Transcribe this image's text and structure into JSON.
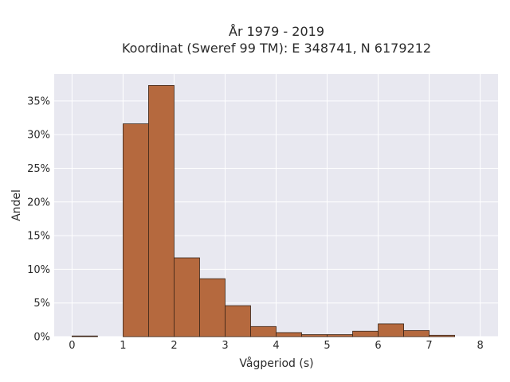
{
  "chart_data": {
    "type": "bar",
    "title_line1": "År 1979 - 2019",
    "title_line2": "Koordinat (Sweref 99 TM): E 348741, N 6179212",
    "xlabel": "Vågperiod (s)",
    "ylabel": "Andel",
    "x_ticks": [
      "0",
      "1",
      "2",
      "3",
      "4",
      "5",
      "6",
      "7",
      "8"
    ],
    "y_ticks": [
      "0%",
      "5%",
      "10%",
      "15%",
      "20%",
      "25%",
      "30%",
      "35%"
    ],
    "xlim": [
      -0.35,
      8.35
    ],
    "ylim": [
      0,
      0.39
    ],
    "bin_width": 0.5,
    "bins": [
      {
        "x0": 0.0,
        "value": 0.001
      },
      {
        "x0": 0.5,
        "value": 0.0
      },
      {
        "x0": 1.0,
        "value": 0.316
      },
      {
        "x0": 1.5,
        "value": 0.373
      },
      {
        "x0": 2.0,
        "value": 0.117
      },
      {
        "x0": 2.5,
        "value": 0.086
      },
      {
        "x0": 3.0,
        "value": 0.046
      },
      {
        "x0": 3.5,
        "value": 0.015
      },
      {
        "x0": 4.0,
        "value": 0.006
      },
      {
        "x0": 4.5,
        "value": 0.003
      },
      {
        "x0": 5.0,
        "value": 0.003
      },
      {
        "x0": 5.5,
        "value": 0.008
      },
      {
        "x0": 6.0,
        "value": 0.019
      },
      {
        "x0": 6.5,
        "value": 0.009
      },
      {
        "x0": 7.0,
        "value": 0.002
      }
    ],
    "grid": true,
    "colors": {
      "bar_fill": "#b5693e",
      "bar_stroke": "#3a2416",
      "plot_bg": "#e8e8f0",
      "grid": "#ffffff"
    }
  }
}
